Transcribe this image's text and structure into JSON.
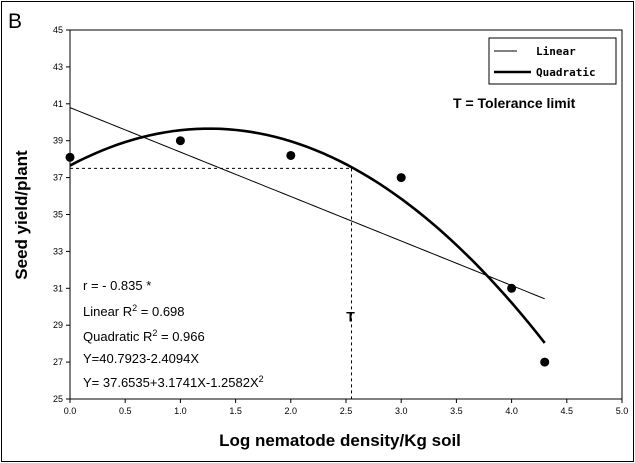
{
  "chart_data": {
    "type": "scatter",
    "panel_label": "B",
    "xlabel": "Log nematode density/Kg soil",
    "ylabel": "Seed yield/plant",
    "xlim": [
      0.0,
      5.0
    ],
    "ylim": [
      25,
      45
    ],
    "x_ticks": [
      "0.0",
      "0.5",
      "1.0",
      "1.5",
      "2.0",
      "2.5",
      "3.0",
      "3.5",
      "4.0",
      "4.5",
      "5.0"
    ],
    "y_ticks": [
      "25",
      "27",
      "29",
      "31",
      "33",
      "35",
      "37",
      "39",
      "41",
      "43",
      "45"
    ],
    "grid": false,
    "observed": {
      "x": [
        0.0,
        1.0,
        2.0,
        3.0,
        4.0,
        4.3
      ],
      "y": [
        38.1,
        39.0,
        38.2,
        37.0,
        31.0,
        27.0
      ]
    },
    "fits": [
      {
        "name": "Linear",
        "intercept": 40.7923,
        "b1": -2.4094,
        "b2": 0,
        "x_range": [
          0.0,
          4.3
        ]
      },
      {
        "name": "Quadratic",
        "intercept": 37.6535,
        "b1": 3.1741,
        "b2": -1.2582,
        "x_range": [
          0.0,
          4.3
        ]
      }
    ],
    "legend": {
      "position": "top-right",
      "entries": [
        "Linear",
        "Quadratic"
      ]
    },
    "tolerance": {
      "x": 2.55,
      "y": 37.5,
      "mark": "T",
      "caption": "T = Tolerance limit"
    },
    "stats": {
      "r": "r = - 0.835 *",
      "linear_r2": {
        "prefix": "Linear R",
        "sup": "2",
        "suffix": " = 0.698"
      },
      "quadratic_r2": {
        "prefix": "Quadratic R",
        "sup": "2",
        "suffix": " = 0.966"
      },
      "linear_eq": "Y=40.7923-2.4094X",
      "quadratic_eq": {
        "prefix": "Y= 37.6535+3.1741X-1.2582X",
        "sup": "2"
      }
    }
  }
}
